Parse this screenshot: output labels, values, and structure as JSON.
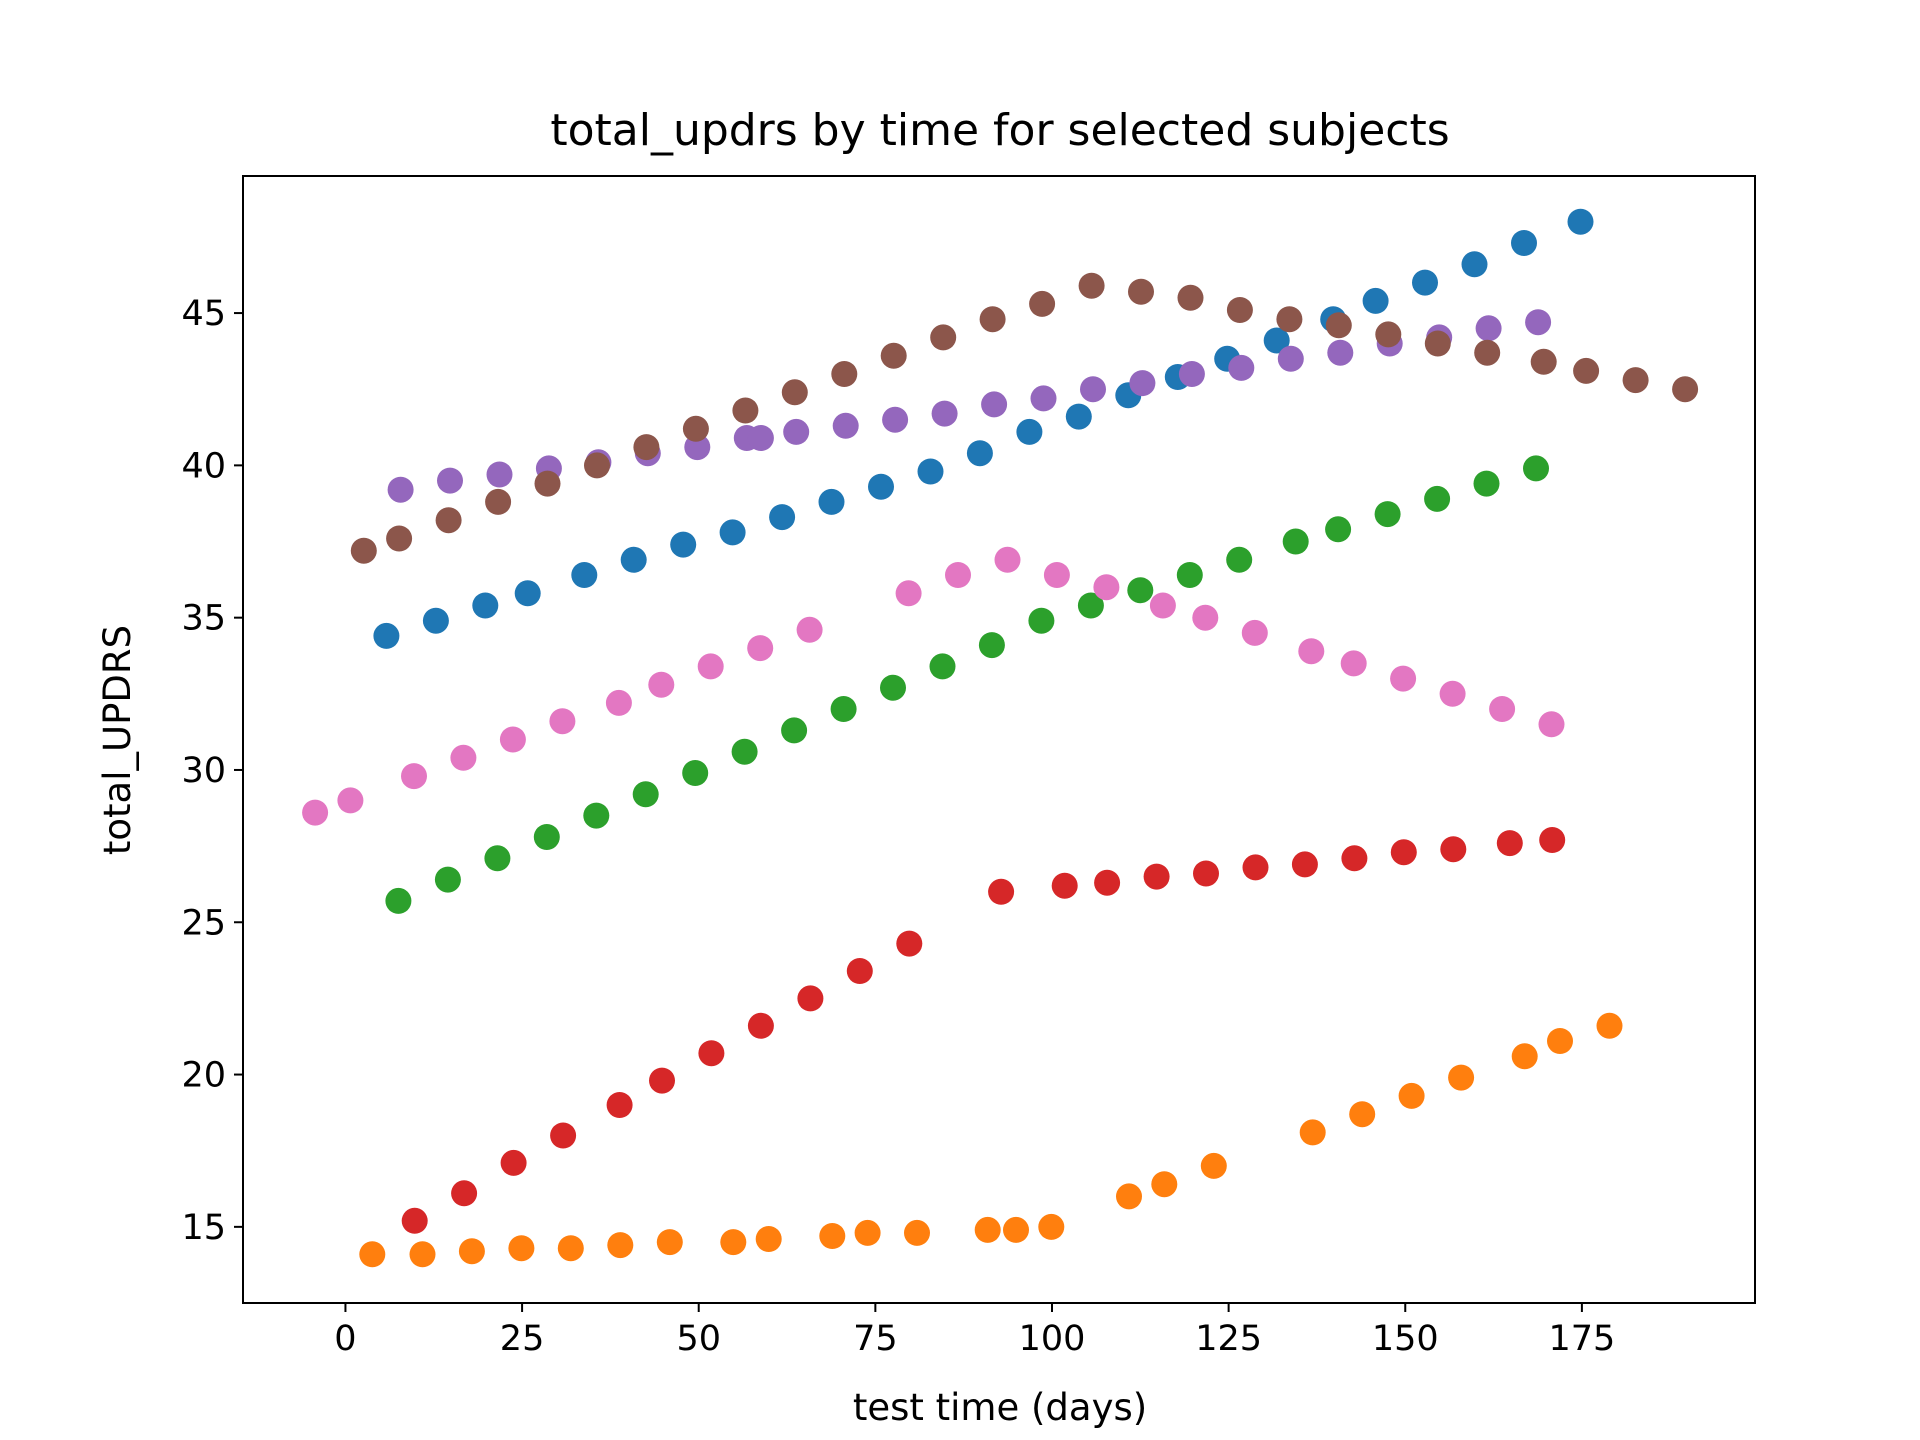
{
  "chart_data": {
    "type": "scatter",
    "title": "total_updrs by time for selected subjects",
    "xlabel": "test time (days)",
    "ylabel": "total_UPDRS",
    "xlim": [
      -14.5,
      199.5
    ],
    "ylim": [
      12.5,
      49.5
    ],
    "xticks": [
      0,
      25,
      50,
      75,
      100,
      125,
      150,
      175
    ],
    "yticks": [
      15,
      20,
      25,
      30,
      35,
      40,
      45
    ],
    "grid": false,
    "legend": "none",
    "series": [
      {
        "color": "#1f77b4",
        "x": [
          5.8,
          12.8,
          19.8,
          25.8,
          33.8,
          40.8,
          47.8,
          54.8,
          61.8,
          68.8,
          75.8,
          82.8,
          89.8,
          96.8,
          103.8,
          110.8,
          117.8,
          124.8,
          131.8,
          139.8,
          145.8,
          152.8,
          159.8,
          166.8,
          174.8
        ],
        "y": [
          34.4,
          34.9,
          35.4,
          35.8,
          36.4,
          36.9,
          37.4,
          37.8,
          38.3,
          38.8,
          39.3,
          39.8,
          40.4,
          41.1,
          41.6,
          42.3,
          42.9,
          43.5,
          44.1,
          44.8,
          45.4,
          46.0,
          46.6,
          47.3,
          48.0
        ]
      },
      {
        "color": "#ff7f0e",
        "x": [
          3.8,
          10.9,
          17.9,
          24.9,
          31.9,
          38.9,
          45.9,
          54.9,
          59.9,
          68.9,
          73.9,
          80.9,
          90.9,
          94.9,
          99.9,
          110.9,
          115.9,
          122.9,
          136.9,
          143.9,
          150.9,
          157.9,
          166.9,
          171.9,
          178.9
        ],
        "y": [
          14.1,
          14.1,
          14.2,
          14.3,
          14.3,
          14.4,
          14.5,
          14.5,
          14.6,
          14.7,
          14.8,
          14.8,
          14.9,
          14.9,
          15.0,
          16.0,
          16.4,
          17.0,
          18.1,
          18.7,
          19.3,
          19.9,
          20.6,
          21.1,
          21.6
        ]
      },
      {
        "color": "#2ca02c",
        "x": [
          7.5,
          14.5,
          21.5,
          28.5,
          35.5,
          42.5,
          49.5,
          56.5,
          63.5,
          70.5,
          77.5,
          84.5,
          91.5,
          98.5,
          105.5,
          112.5,
          119.5,
          126.5,
          134.5,
          140.5,
          147.5,
          154.5,
          161.5,
          168.5
        ],
        "y": [
          25.7,
          26.4,
          27.1,
          27.8,
          28.5,
          29.2,
          29.9,
          30.6,
          31.3,
          32.0,
          32.7,
          33.4,
          34.1,
          34.9,
          35.4,
          35.9,
          36.4,
          36.9,
          37.5,
          37.9,
          38.4,
          38.9,
          39.4,
          39.9
        ]
      },
      {
        "color": "#d62728",
        "x": [
          9.8,
          16.8,
          23.8,
          30.8,
          38.8,
          44.8,
          51.8,
          58.8,
          65.8,
          72.8,
          79.8,
          92.8,
          101.8,
          107.8,
          114.8,
          121.8,
          128.8,
          135.8,
          142.8,
          149.8,
          156.8,
          164.8,
          170.8
        ],
        "y": [
          15.2,
          16.1,
          17.1,
          18.0,
          19.0,
          19.8,
          20.7,
          21.6,
          22.5,
          23.4,
          24.3,
          26.0,
          26.2,
          26.3,
          26.5,
          26.6,
          26.8,
          26.9,
          27.1,
          27.3,
          27.4,
          27.6,
          27.7
        ]
      },
      {
        "color": "#9467bd",
        "x": [
          7.8,
          14.8,
          21.8,
          28.8,
          35.8,
          42.8,
          49.8,
          56.8,
          58.8,
          63.8,
          70.8,
          77.8,
          84.8,
          91.8,
          98.8,
          105.8,
          112.8,
          119.8,
          126.8,
          133.8,
          140.8,
          147.8,
          154.8,
          161.8,
          168.8
        ],
        "y": [
          39.2,
          39.5,
          39.7,
          39.9,
          40.1,
          40.4,
          40.6,
          40.9,
          40.9,
          41.1,
          41.3,
          41.5,
          41.7,
          42.0,
          42.2,
          42.5,
          42.7,
          43.0,
          43.2,
          43.5,
          43.7,
          44.0,
          44.2,
          44.5,
          44.7
        ]
      },
      {
        "color": "#8c564b",
        "x": [
          2.6,
          7.6,
          14.6,
          21.6,
          28.6,
          35.6,
          42.6,
          49.6,
          56.6,
          63.6,
          70.6,
          77.6,
          84.6,
          91.6,
          98.6,
          105.6,
          112.6,
          119.6,
          126.6,
          133.6,
          140.6,
          147.6,
          154.6,
          161.6,
          169.6,
          175.6,
          182.6,
          189.6
        ],
        "y": [
          37.2,
          37.6,
          38.2,
          38.8,
          39.4,
          40.0,
          40.6,
          41.2,
          41.8,
          42.4,
          43.0,
          43.6,
          44.2,
          44.8,
          45.3,
          45.9,
          45.7,
          45.5,
          45.1,
          44.8,
          44.6,
          44.3,
          44.0,
          43.7,
          43.4,
          43.1,
          42.8,
          42.5
        ]
      },
      {
        "color": "#e377c2",
        "x": [
          -4.3,
          0.7,
          9.7,
          16.7,
          23.7,
          30.7,
          38.7,
          44.7,
          51.7,
          58.7,
          65.7,
          79.7,
          86.7,
          93.7,
          100.7,
          107.7,
          115.7,
          121.7,
          128.7,
          136.7,
          142.7,
          149.7,
          156.7,
          163.7,
          170.7
        ],
        "y": [
          28.6,
          29.0,
          29.8,
          30.4,
          31.0,
          31.6,
          32.2,
          32.8,
          33.4,
          34.0,
          34.6,
          35.8,
          36.4,
          36.9,
          36.4,
          36.0,
          35.4,
          35.0,
          34.5,
          33.9,
          33.5,
          33.0,
          32.5,
          32.0,
          31.5
        ]
      }
    ]
  }
}
